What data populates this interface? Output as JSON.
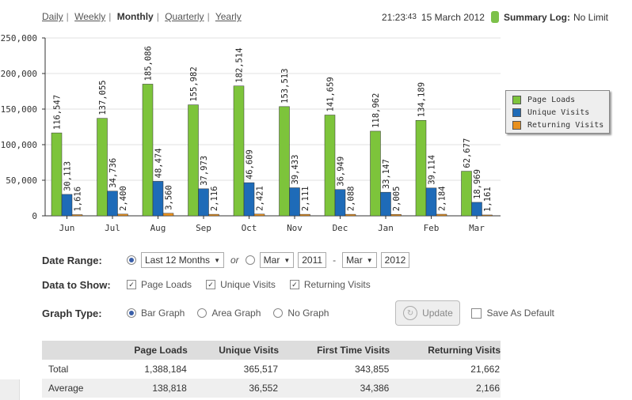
{
  "nav": {
    "items": [
      {
        "label": "Daily",
        "active": false
      },
      {
        "label": "Weekly",
        "active": false
      },
      {
        "label": "Monthly",
        "active": true
      },
      {
        "label": "Quarterly",
        "active": false
      },
      {
        "label": "Yearly",
        "active": false
      }
    ],
    "separator": "|"
  },
  "status": {
    "time": "21:23",
    "seconds": ":43",
    "date": "15 March 2012",
    "summary_label": "Summary Log:",
    "summary_value": "No Limit",
    "indicator_color": "#7dc14a"
  },
  "chart_data": {
    "type": "bar",
    "categories": [
      "Jun",
      "Jul",
      "Aug",
      "Sep",
      "Oct",
      "Nov",
      "Dec",
      "Jan",
      "Feb",
      "Mar"
    ],
    "series": [
      {
        "name": "Page Loads",
        "color": "#7dc43b",
        "values": [
          116547,
          137055,
          185086,
          155982,
          182514,
          153513,
          141659,
          118962,
          134189,
          62677
        ]
      },
      {
        "name": "Unique Visits",
        "color": "#1e6bb8",
        "values": [
          30113,
          34736,
          48474,
          37973,
          46609,
          39433,
          36949,
          33147,
          39114,
          18969
        ]
      },
      {
        "name": "Returning Visits",
        "color": "#e8901e",
        "values": [
          1616,
          2400,
          3560,
          2116,
          2421,
          2111,
          2088,
          2005,
          2184,
          1161
        ]
      }
    ],
    "data_labels": [
      [
        "116,547",
        "137,055",
        "185,086",
        "155,982",
        "182,514",
        "153,513",
        "141,659",
        "118,962",
        "134,189",
        "62,677"
      ],
      [
        "30,113",
        "34,736",
        "48,474",
        "37,973",
        "46,609",
        "39,433",
        "36,949",
        "33,147",
        "39,114",
        "18,969"
      ],
      [
        "1,616",
        "2,400",
        "3,560",
        "2,116",
        "2,421",
        "2,111",
        "2,088",
        "2,005",
        "2,184",
        "1,161"
      ]
    ],
    "yticks": [
      "0",
      "50,000",
      "100,000",
      "150,000",
      "200,000",
      "250,000"
    ],
    "ylim": [
      0,
      250000
    ],
    "grid": true,
    "legend": "right"
  },
  "legend": {
    "items": [
      {
        "label": "Page Loads",
        "color": "#7dc43b"
      },
      {
        "label": "Unique Visits",
        "color": "#1e6bb8"
      },
      {
        "label": "Returning Visits",
        "color": "#e8901e"
      }
    ]
  },
  "form": {
    "date_range": {
      "label": "Date Range:",
      "preset_selected": true,
      "preset": "Last 12 Months",
      "or": "or",
      "from_month": "Mar",
      "from_year": "2011",
      "dash": "-",
      "to_month": "Mar",
      "to_year": "2012"
    },
    "data_to_show": {
      "label": "Data to Show:",
      "options": [
        {
          "label": "Page Loads",
          "checked": true
        },
        {
          "label": "Unique Visits",
          "checked": true
        },
        {
          "label": "Returning Visits",
          "checked": true
        }
      ]
    },
    "graph_type": {
      "label": "Graph Type:",
      "options": [
        {
          "label": "Bar Graph",
          "selected": true
        },
        {
          "label": "Area Graph",
          "selected": false
        },
        {
          "label": "No Graph",
          "selected": false
        }
      ],
      "update_label": "Update",
      "save_default_label": "Save As Default",
      "save_default_checked": false
    }
  },
  "table": {
    "headers": [
      "",
      "Page Loads",
      "Unique Visits",
      "First Time Visits",
      "Returning Visits"
    ],
    "rows": [
      [
        "Total",
        "1,388,184",
        "365,517",
        "343,855",
        "21,662"
      ],
      [
        "Average",
        "138,818",
        "36,552",
        "34,386",
        "2,166"
      ]
    ]
  }
}
